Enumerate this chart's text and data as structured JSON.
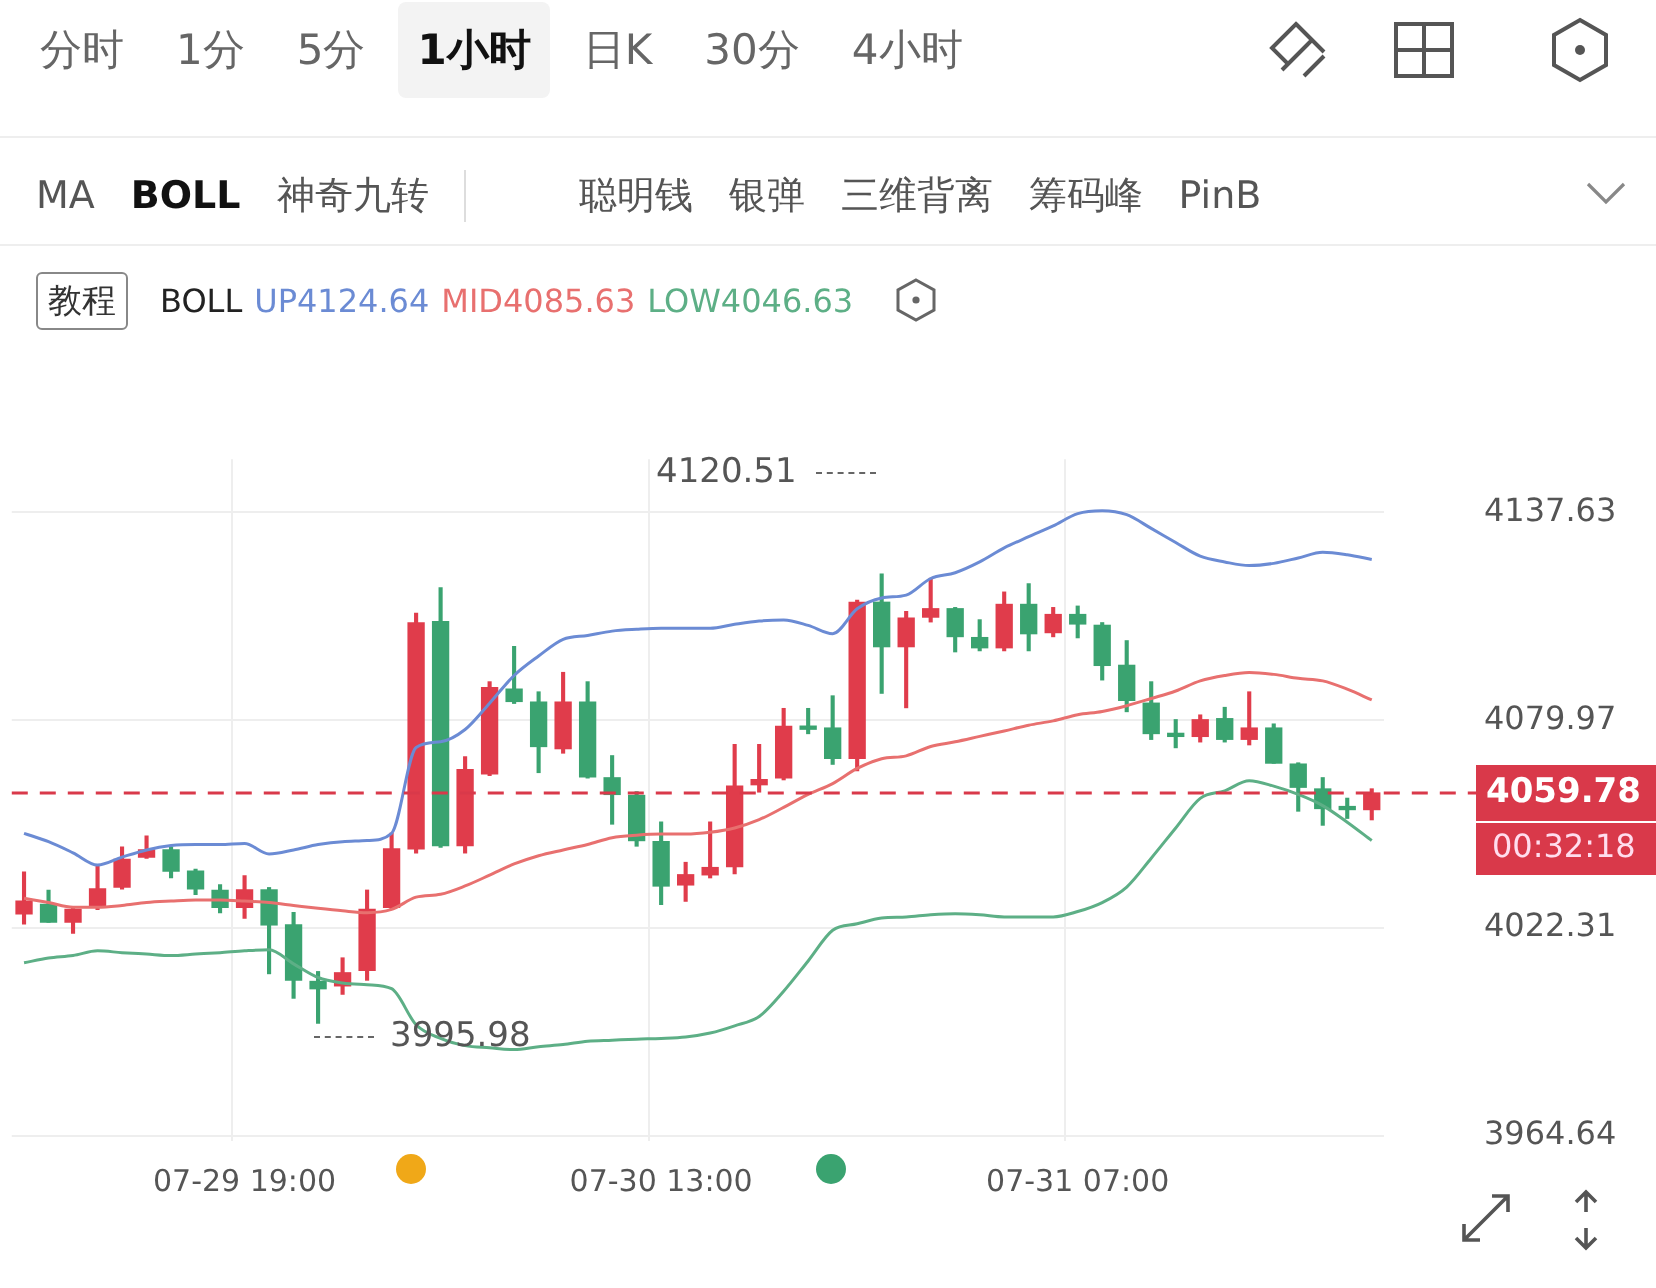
{
  "chart_data": {
    "type": "candlestick",
    "categories": [
      null,
      null,
      null,
      null,
      null,
      null,
      null,
      null,
      null,
      "07-29 19:00",
      null,
      null,
      null,
      null,
      null,
      null,
      null,
      null,
      null,
      null,
      null,
      null,
      null,
      null,
      null,
      null,
      "07-30 13:00",
      null,
      null,
      null,
      null,
      null,
      null,
      null,
      null,
      null,
      null,
      null,
      null,
      null,
      null,
      null,
      null,
      "07-31 07:00",
      null,
      null,
      null,
      null,
      null,
      null,
      null,
      null,
      null,
      null,
      null,
      null
    ],
    "ohlc": [
      [
        4026.3,
        4037.8,
        4023.5,
        4029.8
      ],
      [
        4028.9,
        4032.8,
        4024.0,
        4024.0
      ],
      [
        4024.0,
        4027.8,
        4020.9,
        4027.5
      ],
      [
        4028.1,
        4039.4,
        4027.5,
        4033.2
      ],
      [
        4033.7,
        4044.8,
        4033.2,
        4041.4
      ],
      [
        4042.0,
        4047.8,
        4041.7,
        4044.0
      ],
      [
        4044.0,
        4044.8,
        4036.3,
        4038.1
      ],
      [
        4038.1,
        4038.6,
        4031.7,
        4033.2
      ],
      [
        4032.8,
        4034.3,
        4026.6,
        4028.1
      ],
      [
        4028.1,
        4036.8,
        4025.1,
        4032.9
      ],
      [
        4032.9,
        4033.5,
        4009.7,
        4023.2
      ],
      [
        4023.2,
        4026.6,
        4002.9,
        4007.9
      ],
      [
        4007.5,
        4010.2,
        3995.98,
        4005.5
      ],
      [
        4006.3,
        4014.0,
        4004.0,
        4009.9
      ],
      [
        4010.6,
        4032.8,
        4007.9,
        4027.5
      ],
      [
        4028.1,
        4048.6,
        4027.5,
        4044.3
      ],
      [
        4044.3,
        4109.6,
        4043.2,
        4107.0
      ],
      [
        4107.3,
        4116.7,
        4044.8,
        4045.2
      ],
      [
        4045.2,
        4069.8,
        4043.2,
        4066.3
      ],
      [
        4065.1,
        4090.6,
        4064.7,
        4089.0
      ],
      [
        4088.6,
        4100.4,
        4084.7,
        4085.2
      ],
      [
        4085.0,
        4087.8,
        4065.5,
        4072.7
      ],
      [
        4072.1,
        4093.2,
        4070.9,
        4085.0
      ],
      [
        4085.0,
        4090.6,
        4064.0,
        4064.3
      ],
      [
        4064.0,
        4070.1,
        4051.2,
        4059.4
      ],
      [
        4059.1,
        4060.1,
        4045.1,
        4046.6
      ],
      [
        4046.3,
        4051.7,
        4028.9,
        4034.0
      ],
      [
        4034.3,
        4040.5,
        4029.8,
        4037.1
      ],
      [
        4037.1,
        4051.7,
        4036.3,
        4039.1
      ],
      [
        4039.4,
        4073.2,
        4037.4,
        4061.7
      ],
      [
        4062.1,
        4073.2,
        4060.1,
        4063.5
      ],
      [
        4064.0,
        4083.2,
        4063.5,
        4078.3
      ],
      [
        4078.1,
        4083.2,
        4076.3,
        4077.5
      ],
      [
        4077.8,
        4086.7,
        4067.8,
        4069.4
      ],
      [
        4069.4,
        4113.2,
        4066.0,
        4112.7
      ],
      [
        4112.7,
        4120.51,
        4087.5,
        4100.4
      ],
      [
        4100.4,
        4110.1,
        4083.5,
        4108.3
      ],
      [
        4108.6,
        4119.3,
        4107.3,
        4110.9
      ],
      [
        4110.9,
        4111.2,
        4099.0,
        4103.2
      ],
      [
        4102.9,
        4107.8,
        4099.3,
        4100.1
      ],
      [
        4100.1,
        4115.5,
        4099.3,
        4112.1
      ],
      [
        4112.1,
        4117.8,
        4099.3,
        4104.0
      ],
      [
        4104.3,
        4111.2,
        4103.2,
        4109.3
      ],
      [
        4109.3,
        4111.6,
        4102.9,
        4106.7
      ],
      [
        4106.3,
        4107.0,
        4091.2,
        4095.2
      ],
      [
        4095.2,
        4102.0,
        4082.4,
        4085.5
      ],
      [
        4084.7,
        4090.6,
        4074.7,
        4076.3
      ],
      [
        4076.0,
        4080.1,
        4072.4,
        4075.5
      ],
      [
        4075.5,
        4081.4,
        4074.0,
        4080.1
      ],
      [
        4080.4,
        4083.5,
        4074.0,
        4074.7
      ],
      [
        4074.7,
        4087.8,
        4073.2,
        4077.8
      ],
      [
        4077.8,
        4078.9,
        4068.1,
        4068.1
      ],
      [
        4067.8,
        4068.1,
        4054.8,
        4061.4
      ],
      [
        4060.9,
        4064.0,
        4050.9,
        4055.5
      ],
      [
        4055.8,
        4058.3,
        4052.8,
        4055.2
      ],
      [
        4055.2,
        4060.9,
        4052.4,
        4059.78
      ]
    ],
    "colors": [
      "#e03c4b",
      "#3aa370",
      "#e03c4b",
      "#e03c4b",
      "#e03c4b",
      "#e03c4b",
      "#3aa370",
      "#3aa370",
      "#3aa370",
      "#e03c4b",
      "#3aa370",
      "#3aa370",
      "#3aa370",
      "#e03c4b",
      "#e03c4b",
      "#e03c4b",
      "#e03c4b",
      "#3aa370",
      "#e03c4b",
      "#e03c4b",
      "#3aa370",
      "#3aa370",
      "#e03c4b",
      "#3aa370",
      "#3aa370",
      "#3aa370",
      "#3aa370",
      "#e03c4b",
      "#e03c4b",
      "#e03c4b",
      "#e03c4b",
      "#e03c4b",
      "#3aa370",
      "#3aa370",
      "#e03c4b",
      "#3aa370",
      "#e03c4b",
      "#e03c4b",
      "#3aa370",
      "#3aa370",
      "#e03c4b",
      "#3aa370",
      "#e03c4b",
      "#3aa370",
      "#3aa370",
      "#3aa370",
      "#3aa370",
      "#3aa370",
      "#e03c4b",
      "#3aa370",
      "#e03c4b",
      "#3aa370",
      "#3aa370",
      "#3aa370",
      "#3aa370",
      "#e03c4b"
    ],
    "series": [
      {
        "type": "line",
        "name": "UP4124.64",
        "color": "#6b8bd4",
        "values": [
          4048.6,
          4046.3,
          4043.2,
          4039.8,
          4042.0,
          4044.0,
          4045.2,
          4045.5,
          4045.5,
          4045.8,
          4042.9,
          4044.0,
          4045.5,
          4046.3,
          4046.6,
          4048.6,
          4072.4,
          4074.0,
          4077.4,
          4084.7,
          4092.4,
          4097.8,
          4102.4,
          4103.5,
          4104.7,
          4105.2,
          4105.5,
          4105.5,
          4105.5,
          4106.6,
          4107.5,
          4107.8,
          4106.3,
          4104.0,
          4110.9,
          4113.9,
          4114.7,
          4119.3,
          4120.9,
          4123.9,
          4127.8,
          4130.9,
          4133.9,
          4137.3,
          4138.1,
          4137.0,
          4133.2,
          4129.3,
          4125.5,
          4123.9,
          4122.9,
          4123.5,
          4125.0,
          4126.6,
          4125.9,
          4124.6
        ]
      },
      {
        "type": "line",
        "name": "MID4085.63",
        "color": "#e8706f",
        "values": [
          4030.6,
          4029.4,
          4028.1,
          4028.1,
          4028.6,
          4029.4,
          4029.8,
          4030.1,
          4030.1,
          4029.8,
          4029.4,
          4028.6,
          4027.8,
          4027.1,
          4026.6,
          4027.5,
          4030.9,
          4031.7,
          4034.0,
          4037.0,
          4040.1,
          4042.4,
          4044.0,
          4045.5,
          4047.4,
          4048.1,
          4048.4,
          4048.4,
          4048.9,
          4050.1,
          4052.4,
          4055.8,
          4059.4,
          4062.4,
          4066.6,
          4069.3,
          4070.1,
          4072.7,
          4074.0,
          4075.5,
          4077.0,
          4078.6,
          4079.8,
          4081.5,
          4082.4,
          4084.0,
          4086.0,
          4088.1,
          4090.9,
          4092.4,
          4093.2,
          4092.7,
          4091.6,
          4090.9,
          4088.6,
          4085.6
        ]
      },
      {
        "type": "line",
        "name": "LOW4046.63",
        "color": "#5daf86",
        "values": [
          4012.7,
          4014.0,
          4014.7,
          4016.0,
          4015.5,
          4015.1,
          4014.7,
          4015.1,
          4015.5,
          4016.0,
          4016.3,
          4012.4,
          4008.6,
          4007.1,
          4006.6,
          4005.5,
          3995.5,
          3991.7,
          3989.7,
          3989.1,
          3988.6,
          3989.4,
          3990.0,
          3990.9,
          3991.2,
          3991.5,
          3991.7,
          3992.1,
          3993.2,
          3995.2,
          3997.8,
          4004.8,
          4013.2,
          4021.7,
          4023.5,
          4025.1,
          4025.4,
          4026.0,
          4026.3,
          4026.0,
          4025.4,
          4025.4,
          4025.4,
          4026.9,
          4029.4,
          4033.7,
          4041.7,
          4050.1,
          4058.3,
          4060.4,
          4063.2,
          4061.7,
          4059.4,
          4056.3,
          4051.7,
          4046.6
        ]
      }
    ],
    "ylim": [
      3963.3,
      4152.4
    ],
    "yticks": [
      3964.64,
      4022.31,
      4079.97,
      4137.63
    ],
    "grid": true,
    "legend": "top",
    "legend_title": "BOLL",
    "ref_lines": [
      {
        "axis": "y",
        "value": 4059.78,
        "label": "4059.78",
        "color": "#d9394a",
        "line_style": "dashed"
      }
    ],
    "annotations": [
      "分时 1分 5分 1小时 日K 30分 4小时",
      "MA BOLL 神奇九转 聪明钱 银弹 三维背离 筹码峰 PinB",
      "教程",
      "00:32:18",
      "4120.51",
      "3995.98"
    ]
  }
}
